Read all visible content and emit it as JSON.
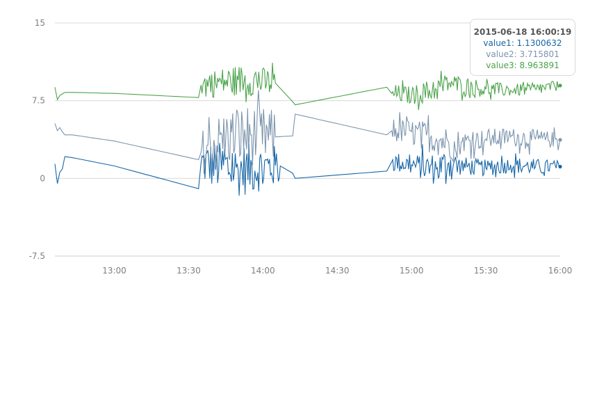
{
  "chart_data": {
    "type": "line",
    "x_type": "time",
    "x_range": [
      "12:36",
      "16:00"
    ],
    "x_ticks": [
      "13:00",
      "13:30",
      "14:00",
      "14:30",
      "15:00",
      "15:30",
      "16:00"
    ],
    "y_ticks": [
      "15",
      "7.5",
      "0",
      "-7.5"
    ],
    "ylim": [
      -7.5,
      15
    ],
    "grid": "horizontal",
    "colors": {
      "value1": "#1565a7",
      "value2": "#7b94ad",
      "value3": "#4aa24a"
    },
    "series": [
      {
        "name": "value1",
        "x": [
          "12:36",
          "12:37",
          "12:38",
          "12:39",
          "12:40",
          "12:43",
          "13:00",
          "13:34",
          "13:35",
          "13:50",
          "14:07",
          "14:12",
          "14:13",
          "14:50",
          "14:52",
          "15:00",
          "15:10",
          "15:15",
          "15:20",
          "15:30",
          "15:40",
          "15:50",
          "16:00"
        ],
        "y": [
          1.4,
          -0.5,
          0.6,
          0.9,
          2.1,
          2.0,
          1.2,
          -1.0,
          1.5,
          0.8,
          1.2,
          0.5,
          0.0,
          0.7,
          1.6,
          1.3,
          0.9,
          1.5,
          1.2,
          1.0,
          1.3,
          1.1,
          1.13
        ],
        "noise": [
          0,
          0,
          0,
          0,
          0,
          0,
          0,
          0,
          2.2,
          2.6,
          2.0,
          0,
          0,
          0,
          1.0,
          1.0,
          1.6,
          1.5,
          0.9,
          0.8,
          0.8,
          0.8,
          0.6
        ]
      },
      {
        "name": "value2",
        "x": [
          "12:36",
          "12:37",
          "12:38",
          "12:39",
          "12:40",
          "12:43",
          "13:00",
          "13:34",
          "13:35",
          "13:45",
          "13:55",
          "14:05",
          "14:12",
          "14:13",
          "14:50",
          "14:52",
          "15:00",
          "15:10",
          "15:15",
          "15:18",
          "15:20",
          "15:30",
          "15:40",
          "15:50",
          "16:00"
        ],
        "y": [
          5.3,
          4.6,
          4.9,
          4.5,
          4.2,
          4.2,
          3.6,
          1.8,
          2.5,
          4.0,
          4.2,
          4.0,
          4.1,
          6.2,
          4.2,
          4.6,
          4.5,
          3.8,
          3.5,
          2.5,
          3.5,
          3.8,
          4.0,
          3.8,
          3.72
        ],
        "noise": [
          0,
          0,
          0,
          0,
          0,
          0,
          0,
          0,
          2.2,
          2.8,
          3.0,
          2.6,
          0,
          0,
          0,
          1.2,
          1.2,
          1.6,
          1.5,
          1.2,
          1.0,
          1.0,
          0.9,
          0.9,
          0.7
        ]
      },
      {
        "name": "value3",
        "x": [
          "12:36",
          "12:37",
          "12:38",
          "12:40",
          "12:43",
          "13:00",
          "13:34",
          "13:35",
          "13:50",
          "14:05",
          "14:12",
          "14:13",
          "14:50",
          "14:52",
          "15:00",
          "15:10",
          "15:15",
          "15:20",
          "15:30",
          "15:40",
          "15:50",
          "16:00"
        ],
        "y": [
          8.8,
          7.6,
          8.0,
          8.3,
          8.3,
          8.2,
          7.8,
          9.0,
          9.5,
          9.2,
          7.4,
          7.1,
          8.8,
          8.2,
          8.0,
          8.6,
          9.2,
          9.0,
          8.6,
          8.5,
          8.6,
          8.96
        ],
        "noise": [
          0,
          0,
          0,
          0,
          0,
          0,
          0,
          1.3,
          1.5,
          1.4,
          0,
          0,
          0,
          0.9,
          0.9,
          1.2,
          1.0,
          0.9,
          0.8,
          0.6,
          0.6,
          0.5
        ]
      }
    ],
    "tooltip": {
      "title": "2015-06-18 16:00:19",
      "rows": [
        "value1: 1.1300632",
        "value2: 3.715801",
        "value3: 8.963891"
      ]
    }
  }
}
